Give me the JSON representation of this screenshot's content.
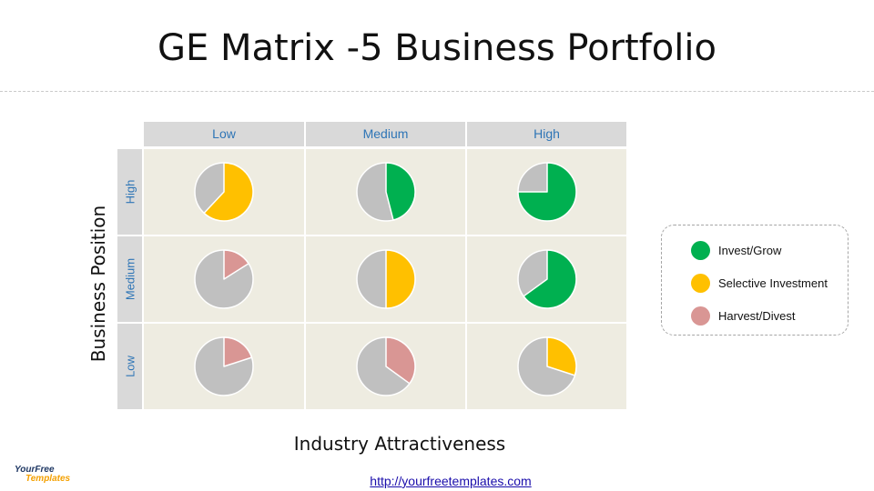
{
  "title": "GE Matrix -5  Business Portfolio",
  "colors": {
    "invest": "#00b050",
    "selective": "#ffc000",
    "harvest": "#d99694",
    "remainder": "#c0c0c0",
    "header_text": "#2e75b6"
  },
  "matrix": {
    "col_headers": [
      "Low",
      "Medium",
      "High"
    ],
    "row_headers": [
      "High",
      "Medium",
      "Low"
    ],
    "y_axis_label": "Business Position",
    "x_axis_label": "Industry Attractiveness"
  },
  "chart_data": {
    "type": "pie",
    "description_rows": [
      "High",
      "Medium",
      "Low"
    ],
    "description_cols": [
      "Low",
      "Medium",
      "High"
    ],
    "cells": [
      [
        {
          "category": "selective",
          "fraction": 0.62
        },
        {
          "category": "invest",
          "fraction": 0.46
        },
        {
          "category": "invest",
          "fraction": 0.75
        }
      ],
      [
        {
          "category": "harvest",
          "fraction": 0.16
        },
        {
          "category": "selective",
          "fraction": 0.5
        },
        {
          "category": "invest",
          "fraction": 0.65
        }
      ],
      [
        {
          "category": "harvest",
          "fraction": 0.2
        },
        {
          "category": "harvest",
          "fraction": 0.35
        },
        {
          "category": "selective",
          "fraction": 0.3
        }
      ]
    ]
  },
  "legend": [
    {
      "key": "invest",
      "label": "Invest/Grow"
    },
    {
      "key": "selective",
      "label": "Selective Investment"
    },
    {
      "key": "harvest",
      "label": "Harvest/Divest"
    }
  ],
  "logo": {
    "line1": "YourFree",
    "line2": "Templates"
  },
  "url": "http://yourfreetemplates.com"
}
